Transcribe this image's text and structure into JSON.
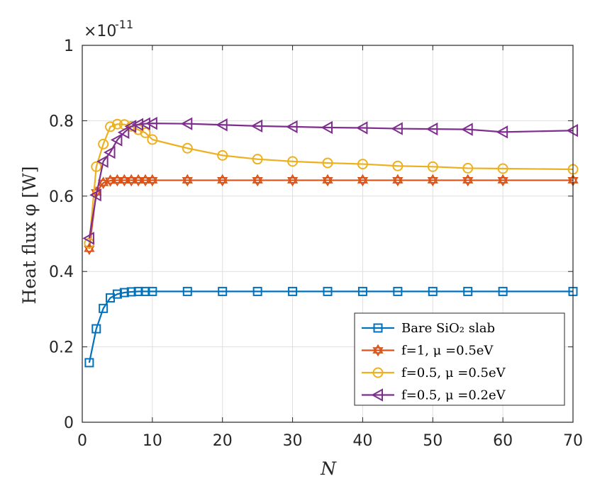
{
  "chart_data": {
    "type": "line",
    "title": "",
    "xlabel": "N",
    "ylabel": "Heat flux φ [W]",
    "xlim": [
      0,
      70
    ],
    "ylim": [
      0,
      1
    ],
    "y_scale_factor": "×10",
    "y_scale_exponent": "-11",
    "xticks": [
      0,
      10,
      20,
      30,
      40,
      50,
      60,
      70
    ],
    "xtick_labels": [
      "0",
      "10",
      "20",
      "30",
      "40",
      "50",
      "60",
      "70"
    ],
    "yticks": [
      0,
      0.2,
      0.4,
      0.6,
      0.8,
      1
    ],
    "ytick_labels": [
      "0",
      "0.2",
      "0.4",
      "0.6",
      "0.8",
      "1"
    ],
    "grid": true,
    "legend_position": "bottom-right",
    "series": [
      {
        "name": "Bare SiO₂ slab",
        "color": "#0072BD",
        "marker": "square",
        "x": [
          1,
          2,
          3,
          4,
          5,
          6,
          7,
          8,
          9,
          10,
          15,
          20,
          25,
          30,
          35,
          40,
          45,
          50,
          55,
          60,
          70
        ],
        "y": [
          0.158,
          0.248,
          0.302,
          0.33,
          0.34,
          0.344,
          0.346,
          0.347,
          0.347,
          0.347,
          0.347,
          0.347,
          0.347,
          0.347,
          0.347,
          0.347,
          0.347,
          0.347,
          0.347,
          0.347,
          0.347
        ]
      },
      {
        "name": "f=1, μ =0.5eV",
        "color": "#D95319",
        "marker": "hexagram",
        "x": [
          1,
          2,
          3,
          4,
          5,
          6,
          7,
          8,
          9,
          10,
          15,
          20,
          25,
          30,
          35,
          40,
          45,
          50,
          55,
          60,
          70
        ],
        "y": [
          0.46,
          0.61,
          0.635,
          0.641,
          0.642,
          0.642,
          0.642,
          0.642,
          0.642,
          0.642,
          0.642,
          0.642,
          0.642,
          0.642,
          0.642,
          0.642,
          0.642,
          0.642,
          0.642,
          0.642,
          0.642
        ]
      },
      {
        "name": "f=0.5, μ =0.5eV",
        "color": "#EDB120",
        "marker": "circle",
        "x": [
          1,
          2,
          3,
          4,
          5,
          6,
          7,
          8,
          9,
          10,
          15,
          20,
          25,
          30,
          35,
          40,
          45,
          50,
          55,
          60,
          70
        ],
        "y": [
          0.475,
          0.678,
          0.738,
          0.784,
          0.791,
          0.79,
          0.785,
          0.776,
          0.768,
          0.75,
          0.727,
          0.708,
          0.698,
          0.692,
          0.688,
          0.685,
          0.68,
          0.678,
          0.674,
          0.673,
          0.671
        ]
      },
      {
        "name": "f=0.5, μ =0.2eV",
        "color": "#7E2F8E",
        "marker": "triangle-left",
        "x": [
          1,
          2,
          3,
          4,
          5,
          6,
          7,
          8,
          9,
          10,
          15,
          20,
          25,
          30,
          35,
          40,
          45,
          50,
          55,
          60,
          70
        ],
        "y": [
          0.488,
          0.603,
          0.692,
          0.716,
          0.749,
          0.769,
          0.785,
          0.79,
          0.792,
          0.793,
          0.792,
          0.789,
          0.786,
          0.784,
          0.782,
          0.781,
          0.779,
          0.778,
          0.777,
          0.77,
          0.774
        ]
      }
    ]
  }
}
